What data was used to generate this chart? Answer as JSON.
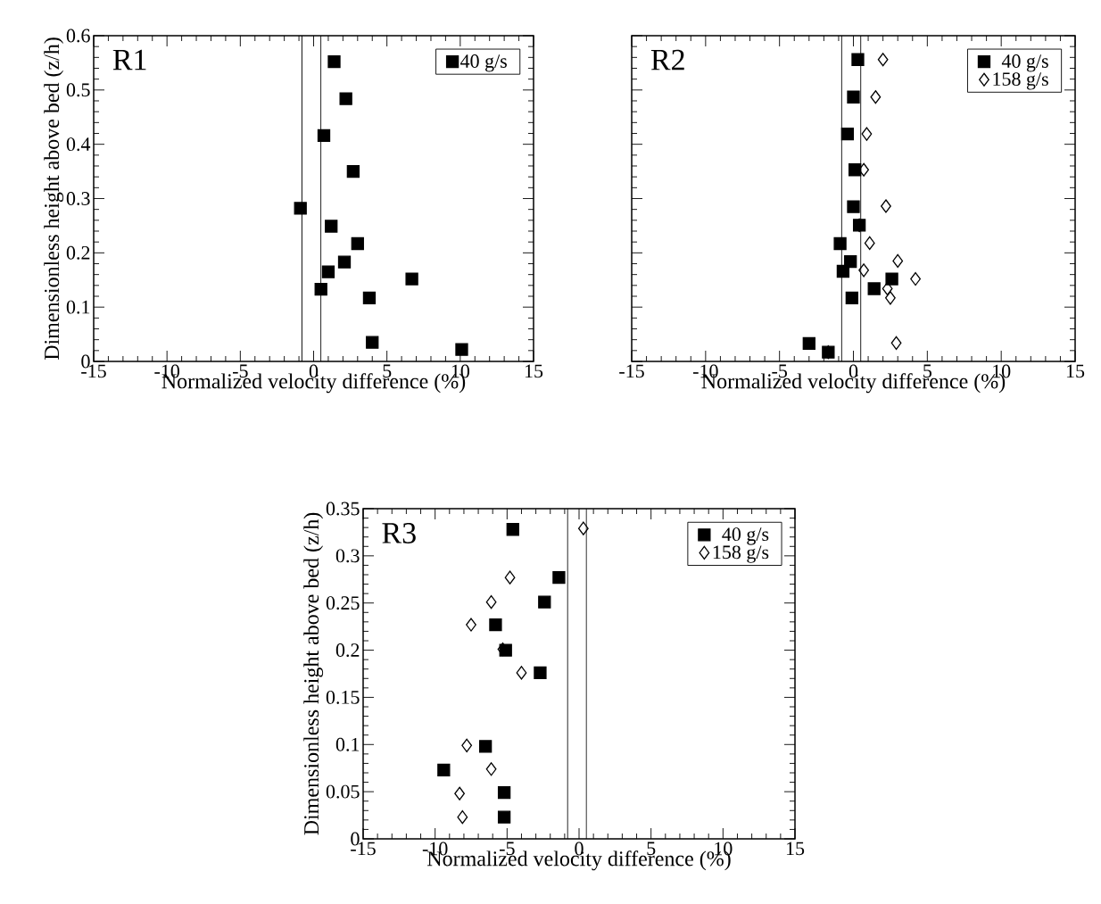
{
  "chart_data": [
    {
      "type": "scatter",
      "title": "R1",
      "xlabel": "Normalized velocity difference (%)",
      "ylabel": "Dimensionless height above bed (z/h)",
      "xlim": [
        -15,
        15
      ],
      "xticks": [
        -15,
        -10,
        -5,
        0,
        5,
        10,
        15
      ],
      "ylim": [
        0,
        0.6
      ],
      "yticks": [
        0,
        0.1,
        0.2,
        0.3,
        0.4,
        0.5,
        0.6
      ],
      "legend": "top right",
      "ref_lines": [
        {
          "axis": "x",
          "value": -0.8
        },
        {
          "axis": "x",
          "value": 0.5
        }
      ],
      "series": [
        {
          "name": "40 g/s",
          "color": "#000000",
          "marker": "square",
          "x": [
            1.4,
            2.2,
            0.7,
            2.7,
            -0.9,
            1.2,
            3.0,
            2.1,
            1.0,
            0.5,
            6.7,
            3.8,
            4.0,
            10.1
          ],
          "values": [
            0.552,
            0.484,
            0.416,
            0.35,
            0.282,
            0.249,
            0.217,
            0.183,
            0.165,
            0.133,
            0.152,
            0.117,
            0.035,
            0.022
          ]
        }
      ]
    },
    {
      "type": "scatter",
      "title": "R2",
      "xlabel": "Normalized velocity difference (%)",
      "xlim": [
        -15,
        15
      ],
      "xticks": [
        -15,
        -10,
        -5,
        0,
        5,
        10,
        15
      ],
      "ylim": [
        0,
        0.6
      ],
      "yticks": [
        0,
        0.1,
        0.2,
        0.3,
        0.4,
        0.5,
        0.6
      ],
      "tick_labels": "x",
      "legend": "top right",
      "ref_lines": [
        {
          "axis": "x",
          "value": -0.8
        },
        {
          "axis": "x",
          "value": 0.5
        }
      ],
      "series": [
        {
          "name": "40 g/s",
          "color": "#000000",
          "marker": "square",
          "x": [
            0.3,
            0.0,
            -0.4,
            0.1,
            0.0,
            0.4,
            -0.9,
            -0.2,
            -0.7,
            2.6,
            1.4,
            -0.1,
            -3.0,
            -1.7
          ],
          "values": [
            0.556,
            0.487,
            0.419,
            0.353,
            0.285,
            0.251,
            0.217,
            0.184,
            0.166,
            0.152,
            0.134,
            0.117,
            0.033,
            0.017
          ]
        },
        {
          "name": "158 g/s",
          "color": "#000000",
          "marker": "diamond",
          "x": [
            2.0,
            1.5,
            0.9,
            0.7,
            2.2,
            0.4,
            1.1,
            3.0,
            0.7,
            4.2,
            2.3,
            2.5,
            2.9,
            -1.7
          ],
          "values": [
            0.556,
            0.487,
            0.419,
            0.353,
            0.286,
            0.251,
            0.218,
            0.185,
            0.168,
            0.152,
            0.134,
            0.117,
            0.034,
            0.017
          ]
        }
      ]
    },
    {
      "type": "scatter",
      "title": "R3",
      "xlabel": "Normalized velocity difference (%)",
      "ylabel": "Dimensionless height above bed (z/h)",
      "xlim": [
        -15,
        15
      ],
      "xticks": [
        -15,
        -10,
        -5,
        0,
        5,
        10,
        15
      ],
      "ylim": [
        0,
        0.35
      ],
      "yticks": [
        0,
        0.05,
        0.1,
        0.15,
        0.2,
        0.25,
        0.3,
        0.35
      ],
      "legend": "top right",
      "ref_lines": [
        {
          "axis": "x",
          "value": -0.8
        },
        {
          "axis": "x",
          "value": 0.5
        }
      ],
      "series": [
        {
          "name": "40 g/s",
          "color": "#000000",
          "marker": "square",
          "x": [
            -4.6,
            -1.4,
            -2.4,
            -5.8,
            -5.1,
            -2.7,
            -6.5,
            -9.4,
            -5.2,
            -5.2
          ],
          "values": [
            0.328,
            0.277,
            0.251,
            0.227,
            0.2,
            0.176,
            0.098,
            0.073,
            0.049,
            0.023
          ]
        },
        {
          "name": "158 g/s",
          "color": "#000000",
          "marker": "diamond",
          "x": [
            0.3,
            -4.8,
            -6.1,
            -7.5,
            -5.3,
            -4.0,
            -7.8,
            -6.1,
            -8.3,
            -8.1
          ],
          "values": [
            0.329,
            0.277,
            0.251,
            0.227,
            0.201,
            0.176,
            0.099,
            0.074,
            0.048,
            0.023
          ]
        }
      ]
    }
  ]
}
